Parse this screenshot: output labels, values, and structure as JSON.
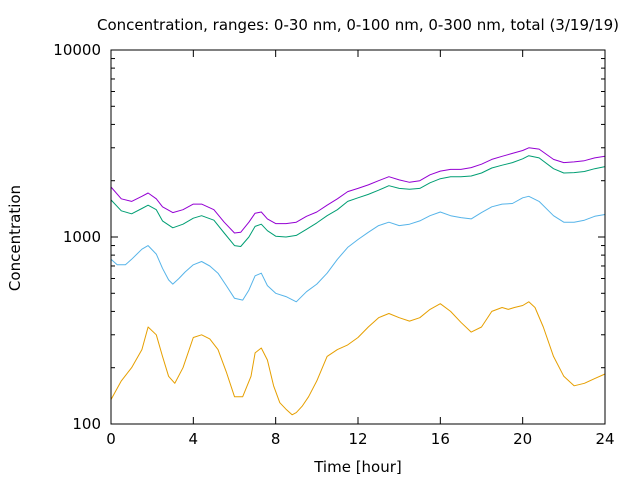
{
  "chart_data": {
    "type": "line",
    "title": "Concentration, ranges: 0-30 nm, 0-100 nm, 0-300 nm, total (3/19/19)",
    "xlabel": "Time [hour]",
    "ylabel": "Concentration",
    "xlim": [
      0,
      24
    ],
    "ylim": [
      100,
      10000
    ],
    "yscale": "log",
    "x_ticks": [
      0,
      4,
      8,
      12,
      16,
      20,
      24
    ],
    "y_ticks": [
      100,
      1000,
      10000
    ],
    "x_tick_labels": [
      "0",
      "4",
      "8",
      "12",
      "16",
      "20",
      "24"
    ],
    "y_tick_labels": [
      "100",
      "1000",
      "10000"
    ],
    "grid": false,
    "legend": "none",
    "series": [
      {
        "color": "#9400d3",
        "x": [
          0,
          0.5,
          1,
          1.5,
          1.8,
          2.2,
          2.5,
          3,
          3.5,
          4,
          4.4,
          5,
          5.5,
          6,
          6.3,
          6.7,
          7,
          7.3,
          7.6,
          8,
          8.5,
          9,
          9.5,
          10,
          10.5,
          11,
          11.5,
          12,
          12.5,
          13,
          13.5,
          14,
          14.5,
          15,
          15.5,
          16,
          16.5,
          17,
          17.5,
          18,
          18.5,
          19,
          19.5,
          20,
          20.3,
          20.8,
          21.5,
          22,
          22.5,
          23,
          23.5,
          24
        ],
        "y": [
          1850,
          1600,
          1550,
          1650,
          1720,
          1600,
          1450,
          1350,
          1400,
          1500,
          1500,
          1400,
          1200,
          1050,
          1060,
          1200,
          1340,
          1360,
          1250,
          1180,
          1180,
          1200,
          1290,
          1360,
          1480,
          1600,
          1750,
          1820,
          1900,
          2000,
          2100,
          2020,
          1960,
          2000,
          2150,
          2250,
          2300,
          2300,
          2350,
          2450,
          2600,
          2700,
          2800,
          2900,
          3000,
          2950,
          2600,
          2500,
          2520,
          2560,
          2650,
          2700
        ]
      },
      {
        "color": "#009e73",
        "x": [
          0,
          0.5,
          1,
          1.5,
          1.8,
          2.2,
          2.5,
          3,
          3.5,
          4,
          4.4,
          5,
          5.5,
          6,
          6.3,
          6.7,
          7,
          7.3,
          7.6,
          8,
          8.5,
          9,
          9.5,
          10,
          10.5,
          11,
          11.5,
          12,
          12.5,
          13,
          13.5,
          14,
          14.5,
          15,
          15.5,
          16,
          16.5,
          17,
          17.5,
          18,
          18.5,
          19,
          19.5,
          20,
          20.3,
          20.8,
          21.5,
          22,
          22.5,
          23,
          23.5,
          24
        ],
        "y": [
          1580,
          1380,
          1330,
          1420,
          1480,
          1400,
          1220,
          1120,
          1170,
          1260,
          1300,
          1230,
          1050,
          900,
          890,
          1000,
          1140,
          1170,
          1080,
          1010,
          1000,
          1020,
          1100,
          1190,
          1300,
          1400,
          1550,
          1620,
          1690,
          1780,
          1880,
          1820,
          1800,
          1820,
          1950,
          2050,
          2100,
          2100,
          2120,
          2200,
          2340,
          2420,
          2500,
          2620,
          2720,
          2650,
          2320,
          2200,
          2210,
          2240,
          2320,
          2380
        ]
      },
      {
        "color": "#56b4e9",
        "x": [
          0,
          0.3,
          0.7,
          1,
          1.5,
          1.8,
          2.2,
          2.5,
          2.8,
          3,
          3.3,
          3.6,
          4,
          4.4,
          4.8,
          5.2,
          5.6,
          6,
          6.4,
          6.7,
          7,
          7.3,
          7.6,
          8,
          8.5,
          9,
          9.5,
          10,
          10.5,
          11,
          11.5,
          12,
          12.5,
          13,
          13.5,
          14,
          14.5,
          15,
          15.5,
          16,
          16.5,
          17,
          17.5,
          18,
          18.5,
          19,
          19.5,
          20,
          20.3,
          20.8,
          21.5,
          22,
          22.5,
          23,
          23.5,
          24
        ],
        "y": [
          760,
          710,
          710,
          760,
          860,
          900,
          810,
          680,
          590,
          560,
          600,
          650,
          710,
          740,
          700,
          640,
          550,
          470,
          460,
          520,
          620,
          640,
          550,
          500,
          480,
          450,
          510,
          560,
          640,
          760,
          880,
          970,
          1060,
          1150,
          1200,
          1150,
          1170,
          1220,
          1300,
          1360,
          1300,
          1270,
          1250,
          1350,
          1450,
          1500,
          1510,
          1620,
          1650,
          1550,
          1300,
          1200,
          1200,
          1230,
          1290,
          1320
        ]
      },
      {
        "color": "#e69f00",
        "x": [
          0,
          0.5,
          1,
          1.5,
          1.8,
          2.2,
          2.5,
          2.8,
          3.1,
          3.5,
          4,
          4.4,
          4.8,
          5.2,
          5.6,
          6,
          6.4,
          6.8,
          7,
          7.3,
          7.6,
          7.9,
          8.2,
          8.5,
          8.8,
          9,
          9.3,
          9.6,
          10,
          10.5,
          11,
          11.5,
          12,
          12.5,
          13,
          13.5,
          14,
          14.5,
          15,
          15.5,
          16,
          16.5,
          17,
          17.5,
          18,
          18.5,
          19,
          19.3,
          19.6,
          20,
          20.3,
          20.6,
          21,
          21.5,
          22,
          22.5,
          23,
          23.5,
          24
        ],
        "y": [
          135,
          170,
          200,
          250,
          330,
          300,
          230,
          180,
          165,
          200,
          290,
          300,
          285,
          250,
          190,
          140,
          140,
          180,
          240,
          255,
          220,
          160,
          130,
          120,
          112,
          115,
          125,
          140,
          170,
          230,
          250,
          265,
          290,
          330,
          370,
          390,
          370,
          355,
          370,
          410,
          440,
          400,
          350,
          310,
          330,
          400,
          420,
          410,
          420,
          430,
          450,
          420,
          330,
          230,
          180,
          160,
          165,
          175,
          185
        ]
      }
    ]
  }
}
